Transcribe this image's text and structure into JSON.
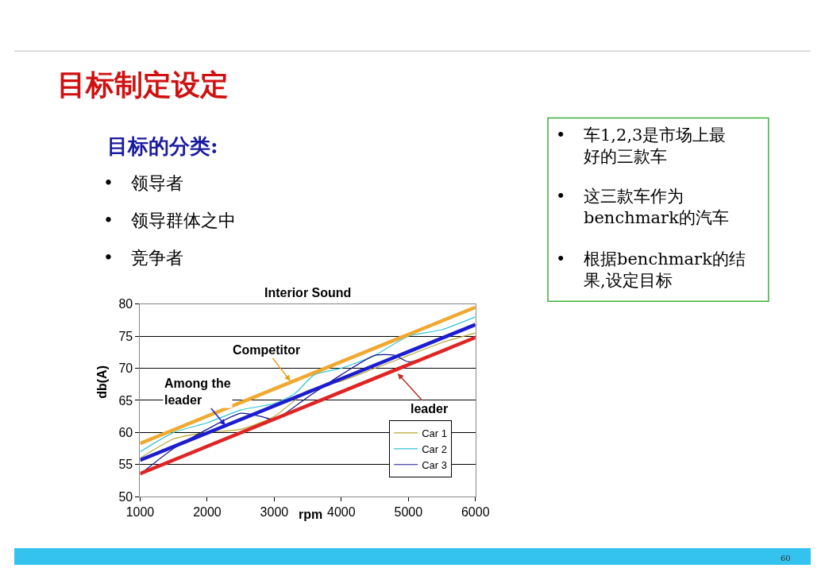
{
  "chart_data": {
    "type": "line",
    "title": "Interior Sound",
    "xlabel": "rpm",
    "ylabel": "db(A)",
    "xlim": [
      1000,
      6000
    ],
    "xticks": [
      1000,
      2000,
      3000,
      4000,
      5000,
      6000
    ],
    "ylim": [
      50,
      80
    ],
    "yticks": [
      50,
      55,
      60,
      65,
      70,
      75,
      80
    ],
    "grid": "y",
    "legend": "bottom right",
    "series": [
      {
        "name": "Car 1",
        "color": "#b5a52a",
        "x": [
          1000,
          1500,
          2000,
          2500,
          3000,
          3500,
          4000,
          4500,
          5000,
          5500,
          6000
        ],
        "values": [
          56,
          59,
          60,
          60.5,
          62.5,
          66.5,
          68,
          70,
          72,
          74,
          75.5
        ]
      },
      {
        "name": "Car 2",
        "color": "#2ec4d6",
        "x": [
          1000,
          1500,
          2000,
          2500,
          3000,
          3300,
          3600,
          4000,
          4500,
          5000,
          5500,
          6000
        ],
        "values": [
          57,
          60,
          61.5,
          63.5,
          64.5,
          66,
          69,
          70,
          72,
          75,
          76,
          78
        ]
      },
      {
        "name": "Car 3",
        "color": "#14148c",
        "x": [
          1000,
          1500,
          2000,
          2500,
          2800,
          3000,
          3500,
          4000,
          4500,
          4800,
          5000,
          5500,
          6000
        ],
        "values": [
          53.5,
          57.5,
          60.5,
          63,
          62.5,
          62,
          65.5,
          69,
          72,
          72,
          71,
          72.5,
          75
        ]
      },
      {
        "color": "#f0a830",
        "x": [
          1000,
          6000
        ],
        "values": [
          58.3,
          79.5
        ]
      },
      {
        "color": "#1c1cd0",
        "x": [
          1000,
          6000
        ],
        "values": [
          55.7,
          76.8
        ]
      },
      {
        "color": "#e02424",
        "x": [
          1000,
          6000
        ],
        "values": [
          53.6,
          74.8
        ]
      }
    ],
    "annotations": [
      {
        "text": "Competitor",
        "x": 3240,
        "y": 68
      },
      {
        "text": "Among the\nleader",
        "x": 2270,
        "y": 61.1
      },
      {
        "text": "leader",
        "x": 4840,
        "y": 69.2
      },
      "目标制定设定",
      "目标的分类:",
      "•",
      "领导者",
      "•",
      "领导群体之中",
      "•",
      "竞争者",
      "•",
      "车1,2,3是市场上最好的三款车",
      "•",
      "这三款车作为benchmark的汽车",
      "•",
      "根据benchmark的结果,设定目标",
      "60"
    ]
  }
}
